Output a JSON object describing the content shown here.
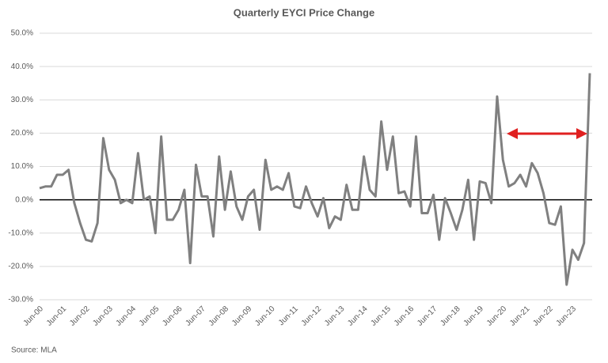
{
  "chart_data": {
    "type": "line",
    "title": "Quarterly EYCI Price Change",
    "source": "Source: MLA",
    "categories": [
      "Jun-00",
      null,
      null,
      null,
      "Jun-01",
      null,
      null,
      null,
      "Jun-02",
      null,
      null,
      null,
      "Jun-03",
      null,
      null,
      null,
      "Jun-04",
      null,
      null,
      null,
      "Jun-05",
      null,
      null,
      null,
      "Jun-06",
      null,
      null,
      null,
      "Jun-07",
      null,
      null,
      null,
      "Jun-08",
      null,
      null,
      null,
      "Jun-09",
      null,
      null,
      null,
      "Jun-10",
      null,
      null,
      null,
      "Jun-11",
      null,
      null,
      null,
      "Jun-12",
      null,
      null,
      null,
      "Jun-13",
      null,
      null,
      null,
      "Jun-14",
      null,
      null,
      null,
      "Jun-15",
      null,
      null,
      null,
      "Jun-16",
      null,
      null,
      null,
      "Jun-17",
      null,
      null,
      null,
      "Jun-18",
      null,
      null,
      null,
      "Jun-19",
      null,
      null,
      null,
      "Jun-20",
      null,
      null,
      null,
      "Jun-21",
      null,
      null,
      null,
      "Jun-22",
      null,
      null,
      null,
      "Jun-23",
      null,
      null,
      null
    ],
    "values": [
      3.5,
      4,
      4,
      7.5,
      7.5,
      9,
      -1,
      -7,
      -12,
      -12.5,
      -7,
      18.5,
      9,
      6,
      -1,
      0,
      -1,
      14,
      0,
      1,
      -10,
      19,
      -6,
      -6,
      -3,
      3,
      -19,
      10.5,
      1,
      1,
      -11,
      13,
      -3,
      8.5,
      -2,
      -6,
      1,
      3,
      -9,
      12,
      3,
      4,
      3,
      8,
      -2,
      -2.5,
      4,
      -1,
      -5,
      0.5,
      -8.5,
      -5,
      -6,
      4.5,
      -3,
      -3,
      13,
      3,
      1,
      23.5,
      9,
      19,
      2,
      2.5,
      -2,
      19,
      -4,
      -4,
      1.5,
      -12,
      0.5,
      -4,
      -9,
      -3,
      6,
      -12,
      5.5,
      5,
      -1,
      31,
      12,
      4,
      5,
      7.5,
      4,
      11,
      8,
      2,
      -7,
      -7.5,
      -2,
      -25.5,
      -15,
      -18,
      -13,
      38
    ],
    "color": "#808080",
    "ylim": [
      -30,
      50
    ],
    "yticks": [
      {
        "value": -30,
        "label": "-30.0%"
      },
      {
        "value": -20,
        "label": "-20.0%"
      },
      {
        "value": -10,
        "label": "-10.0%"
      },
      {
        "value": 0,
        "label": "0.0%"
      },
      {
        "value": 10,
        "label": "10.0%"
      },
      {
        "value": 20,
        "label": "20.0%"
      },
      {
        "value": 30,
        "label": "30.0%"
      },
      {
        "value": 40,
        "label": "40.0%"
      },
      {
        "value": 50,
        "label": "50.0%"
      }
    ],
    "grid": true
  }
}
